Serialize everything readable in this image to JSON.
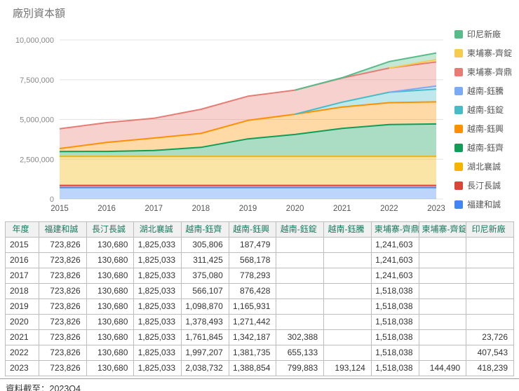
{
  "footer_note": "資料截至：2023Q4",
  "colors": {
    "table_header_text": "#1a7a5e",
    "grid_line": "#e3e3e3",
    "axis_label": "#888888",
    "title_text": "#757575"
  },
  "chart_data": {
    "type": "area",
    "stacked": true,
    "title": "廠別資本額",
    "xlabel": "",
    "ylabel": "",
    "grid": true,
    "legend_position": "right",
    "ylim": [
      0,
      10000000
    ],
    "yticks": [
      {
        "value": 0,
        "label": "0"
      },
      {
        "value": 2500000,
        "label": "2,500,000"
      },
      {
        "value": 5000000,
        "label": "5,000,000"
      },
      {
        "value": 7500000,
        "label": "7,500,000"
      },
      {
        "value": 10000000,
        "label": "10,000,000"
      }
    ],
    "x": [
      "2015",
      "2016",
      "2017",
      "2018",
      "2019",
      "2020",
      "2021",
      "2022",
      "2023"
    ],
    "series": [
      {
        "name": "福建和誠",
        "color": "#4285F4",
        "values": [
          723826,
          723826,
          723826,
          723826,
          723826,
          723826,
          723826,
          723826,
          723826
        ]
      },
      {
        "name": "長汀長誠",
        "color": "#DB4437",
        "values": [
          130680,
          130680,
          130680,
          130680,
          130680,
          130680,
          130680,
          130680,
          130680
        ]
      },
      {
        "name": "湖北襄誠",
        "color": "#F4B400",
        "values": [
          1825033,
          1825033,
          1825033,
          1825033,
          1825033,
          1825033,
          1825033,
          1825033,
          1825033
        ]
      },
      {
        "name": "越南-鈺齊",
        "color": "#0F9D58",
        "values": [
          305806,
          311425,
          375080,
          566107,
          1098870,
          1378493,
          1761845,
          1997207,
          2038732
        ]
      },
      {
        "name": "越南-鈺興",
        "color": "#FF9100",
        "values": [
          187479,
          568178,
          778293,
          876428,
          1165931,
          1271442,
          1342187,
          1381735,
          1388854
        ]
      },
      {
        "name": "越南-鈺錠",
        "color": "#46BDC6",
        "values": [
          null,
          null,
          null,
          null,
          null,
          null,
          302388,
          655133,
          799883
        ]
      },
      {
        "name": "越南-鈺騰",
        "color": "#7BAAF7",
        "values": [
          null,
          null,
          null,
          null,
          null,
          null,
          null,
          null,
          193124
        ]
      },
      {
        "name": "柬埔寨-齊鼎",
        "color": "#E67C73",
        "values": [
          1241603,
          1241603,
          1241603,
          1518038,
          1518038,
          1518038,
          1518038,
          1518038,
          1518038
        ]
      },
      {
        "name": "柬埔寨-齊錠",
        "color": "#F7CB4D",
        "values": [
          null,
          null,
          null,
          null,
          null,
          null,
          null,
          null,
          144490
        ]
      },
      {
        "name": "印尼新廠",
        "color": "#57BB8A",
        "values": [
          null,
          null,
          null,
          null,
          null,
          null,
          23726,
          407543,
          418239
        ]
      }
    ]
  },
  "table": {
    "headers": [
      "年度",
      "福建和誠",
      "長汀長誠",
      "湖北襄誠",
      "越南-鈺齊",
      "越南-鈺興",
      "越南-鈺錠",
      "越南-鈺騰",
      "柬埔寨-齊鼎",
      "柬埔寨-齊錠",
      "印尼新廠"
    ],
    "rows": [
      [
        "2015",
        "723,826",
        "130,680",
        "1,825,033",
        "305,806",
        "187,479",
        "",
        "",
        "1,241,603",
        "",
        ""
      ],
      [
        "2016",
        "723,826",
        "130,680",
        "1,825,033",
        "311,425",
        "568,178",
        "",
        "",
        "1,241,603",
        "",
        ""
      ],
      [
        "2017",
        "723,826",
        "130,680",
        "1,825,033",
        "375,080",
        "778,293",
        "",
        "",
        "1,241,603",
        "",
        ""
      ],
      [
        "2018",
        "723,826",
        "130,680",
        "1,825,033",
        "566,107",
        "876,428",
        "",
        "",
        "1,518,038",
        "",
        ""
      ],
      [
        "2019",
        "723,826",
        "130,680",
        "1,825,033",
        "1,098,870",
        "1,165,931",
        "",
        "",
        "1,518,038",
        "",
        ""
      ],
      [
        "2020",
        "723,826",
        "130,680",
        "1,825,033",
        "1,378,493",
        "1,271,442",
        "",
        "",
        "1,518,038",
        "",
        ""
      ],
      [
        "2021",
        "723,826",
        "130,680",
        "1,825,033",
        "1,761,845",
        "1,342,187",
        "302,388",
        "",
        "1,518,038",
        "",
        "23,726"
      ],
      [
        "2022",
        "723,826",
        "130,680",
        "1,825,033",
        "1,997,207",
        "1,381,735",
        "655,133",
        "",
        "1,518,038",
        "",
        "407,543"
      ],
      [
        "2023",
        "723,826",
        "130,680",
        "1,825,033",
        "2,038,732",
        "1,388,854",
        "799,883",
        "193,124",
        "1,518,038",
        "144,490",
        "418,239"
      ]
    ]
  }
}
